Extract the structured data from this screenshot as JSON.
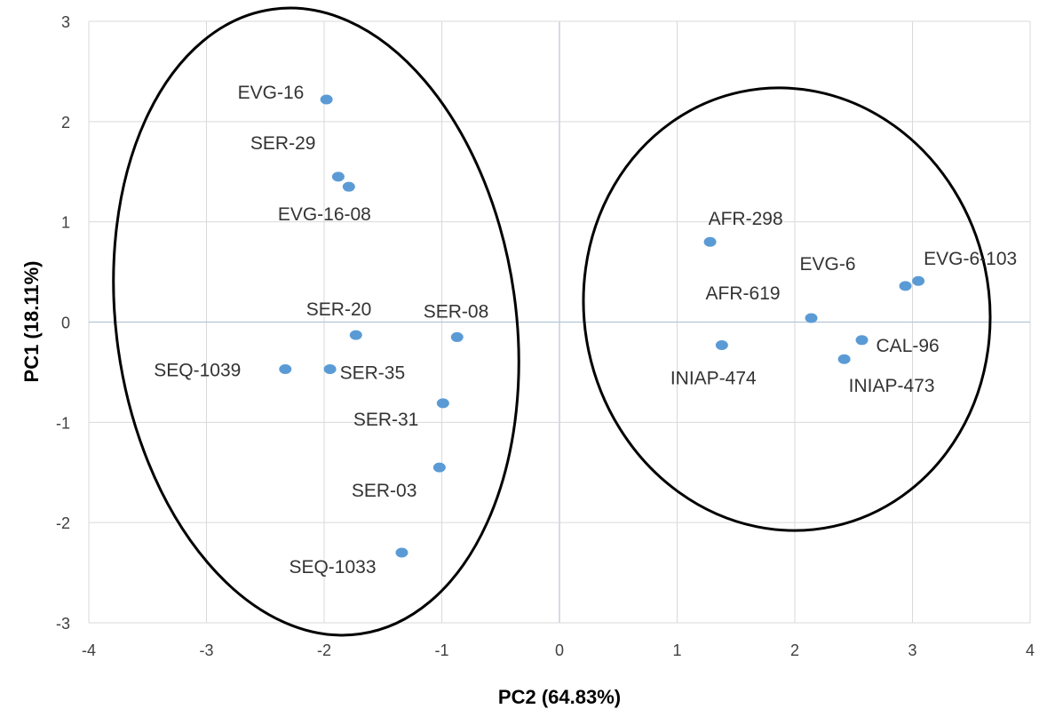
{
  "chart_data": {
    "type": "scatter",
    "title": "",
    "xlabel": "PC2 (64.83%)",
    "ylabel": "PC1 (18.11%)",
    "xlim": [
      -4,
      4
    ],
    "ylim": [
      -3,
      3
    ],
    "xticks": [
      "-4",
      "-3",
      "-2",
      "-1",
      "0",
      "1",
      "2",
      "3",
      "4"
    ],
    "yticks": [
      "3",
      "2",
      "1",
      "0",
      "-1",
      "-2",
      "-3"
    ],
    "grid": true,
    "legend": "none",
    "point_color": "#5b9bd5",
    "points": [
      {
        "label": "EVG-16",
        "x": -1.98,
        "y": 2.22
      },
      {
        "label": "SER-29",
        "x": -1.88,
        "y": 1.45
      },
      {
        "label": "EVG-16-08",
        "x": -1.79,
        "y": 1.35
      },
      {
        "label": "SER-20",
        "x": -1.73,
        "y": -0.13
      },
      {
        "label": "SER-08",
        "x": -0.87,
        "y": -0.15
      },
      {
        "label": "SEQ-1039",
        "x": -2.33,
        "y": -0.47
      },
      {
        "label": "SER-35",
        "x": -1.95,
        "y": -0.47
      },
      {
        "label": "SER-31",
        "x": -0.99,
        "y": -0.81
      },
      {
        "label": "SER-03",
        "x": -1.02,
        "y": -1.45
      },
      {
        "label": "SEQ-1033",
        "x": -1.34,
        "y": -2.3
      },
      {
        "label": "AFR-298",
        "x": 1.28,
        "y": 0.8
      },
      {
        "label": "EVG-6",
        "x": 2.94,
        "y": 0.36
      },
      {
        "label": "EVG-6-103",
        "x": 3.05,
        "y": 0.41
      },
      {
        "label": "AFR-619",
        "x": 2.14,
        "y": 0.04
      },
      {
        "label": "CAL-96",
        "x": 2.57,
        "y": -0.18
      },
      {
        "label": "INIAP-474",
        "x": 1.38,
        "y": -0.23
      },
      {
        "label": "INIAP-473",
        "x": 2.42,
        "y": -0.37
      }
    ],
    "annotations": [
      {
        "shape": "ellipse",
        "group": "left cluster"
      },
      {
        "shape": "ellipse",
        "group": "right cluster"
      }
    ]
  }
}
